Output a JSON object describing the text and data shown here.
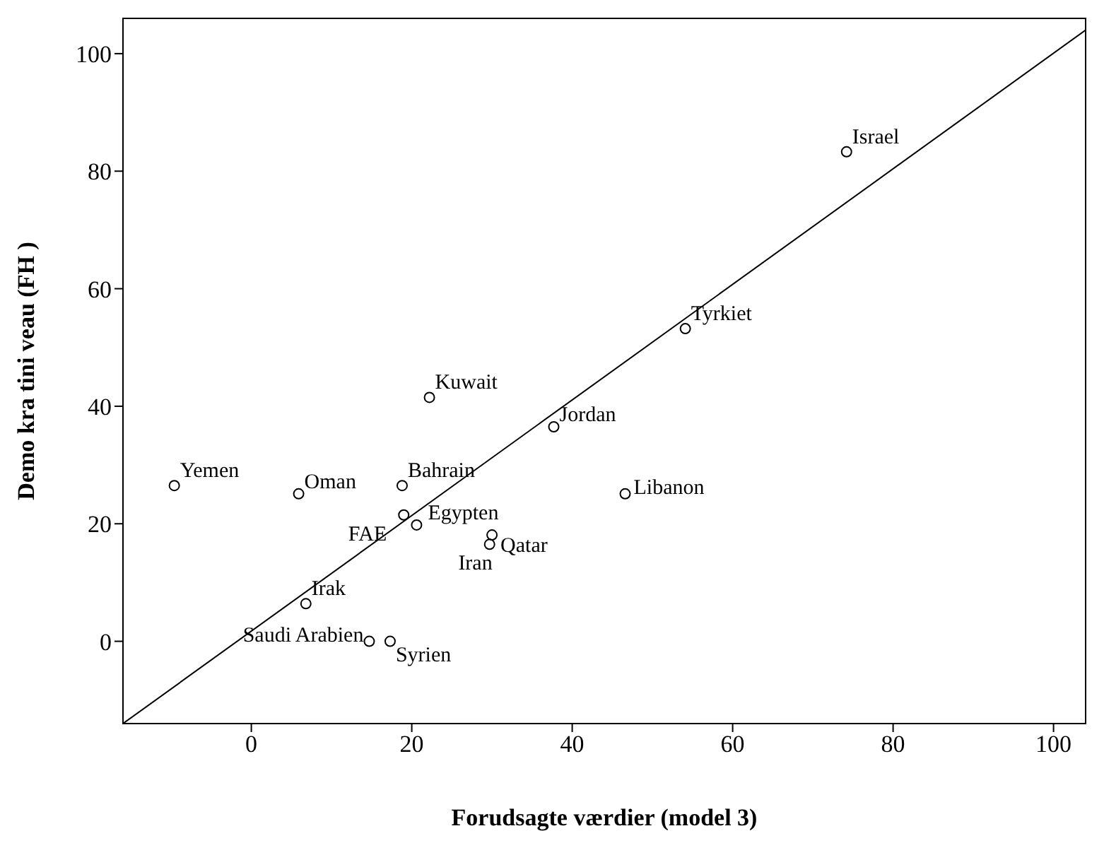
{
  "chart_data": {
    "type": "scatter",
    "xlabel": "Forudsagte værdier (model 3)",
    "ylabel": "Demo kra tini veau (FH )",
    "xlim": [
      -16,
      104
    ],
    "ylim": [
      -14,
      106
    ],
    "xticks": [
      0,
      20,
      40,
      60,
      80,
      100
    ],
    "yticks": [
      0,
      20,
      40,
      60,
      80,
      100
    ],
    "grid": false,
    "legend": false,
    "marker": "circle",
    "series": [
      {
        "color": "#000000",
        "x": [
          -9.6,
          5.9,
          18.8,
          19.0,
          20.6,
          22.2,
          30.0,
          29.7,
          6.8,
          14.7,
          17.3,
          37.7,
          46.6,
          54.1,
          74.2
        ],
        "values": [
          26.5,
          25.1,
          26.5,
          21.5,
          19.8,
          41.5,
          18.1,
          16.5,
          6.4,
          0,
          0,
          36.5,
          25.1,
          53.2,
          83.3
        ]
      },
      {
        "type": "line",
        "color": "#000000",
        "line_style": "solid",
        "marker": "none",
        "x": [
          -16,
          104
        ],
        "values": [
          -14,
          104
        ]
      }
    ],
    "annotations": [
      {
        "text": "Yemen",
        "x": -9.6,
        "y": 26.5
      },
      {
        "text": "Oman",
        "x": 5.9,
        "y": 25.1
      },
      {
        "text": "Bahrain",
        "x": 18.8,
        "y": 26.5
      },
      {
        "text": "FAE",
        "x": 19.0,
        "y": 21.5
      },
      {
        "text": "Egypten",
        "x": 20.6,
        "y": 19.8
      },
      {
        "text": "Kuwait",
        "x": 22.2,
        "y": 41.5
      },
      {
        "text": "Qatar",
        "x": 30.0,
        "y": 18.1
      },
      {
        "text": "Iran",
        "x": 29.7,
        "y": 16.5
      },
      {
        "text": "Irak",
        "x": 6.8,
        "y": 6.4
      },
      {
        "text": "Saudi Arabien",
        "x": 14.7,
        "y": 0
      },
      {
        "text": "Syrien",
        "x": 17.3,
        "y": 0
      },
      {
        "text": "Jordan",
        "x": 37.7,
        "y": 36.5
      },
      {
        "text": "Libanon",
        "x": 46.6,
        "y": 25.1
      },
      {
        "text": "Tyrkiet",
        "x": 54.1,
        "y": 53.2
      },
      {
        "text": "Israel",
        "x": 74.2,
        "y": 83.3
      }
    ]
  }
}
